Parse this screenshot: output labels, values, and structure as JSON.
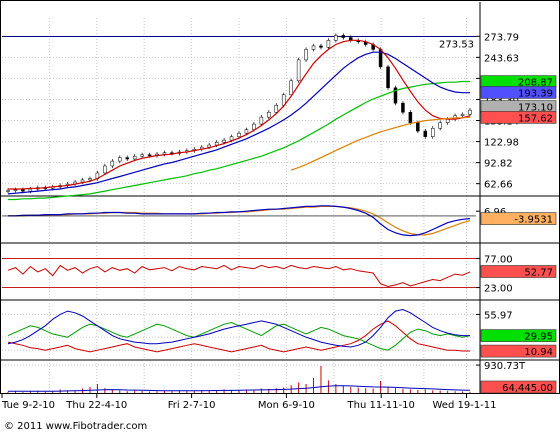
{
  "chart_data": {
    "type": "candlestick",
    "colors": {
      "up": "#00a000",
      "down": "#d00000",
      "sma_short": "#d00000",
      "sma_mid": "#0000c0",
      "sma_long": "#00c000",
      "sma_extra": "#e08000",
      "grid": "#c8c8c8",
      "divider": "#000000",
      "hline": "#00008b"
    },
    "price_panel": {
      "axis_ticks": [
        "273.79",
        "243.63",
        "213.47",
        "183.30",
        "153.14",
        "122.98",
        "92.82",
        "62.66"
      ],
      "tick_values": [
        273.79,
        243.63,
        213.47,
        183.3,
        153.14,
        122.98,
        92.82,
        62.66
      ],
      "ylim": [
        45,
        300
      ],
      "hline": {
        "value": 273.53,
        "label": "273.53"
      },
      "badges": [
        {
          "label": "208.87",
          "value": 208.87,
          "bg": "#00e000",
          "fg": "#000000"
        },
        {
          "label": "193.39",
          "value": 193.39,
          "bg": "#5050ff",
          "fg": "#000000"
        },
        {
          "label": "173.10",
          "value": 173.1,
          "bg": "#b0b0b0",
          "fg": "#000000"
        },
        {
          "label": "157.62",
          "value": 157.62,
          "bg": "#ff5050",
          "fg": "#000000"
        }
      ],
      "close": [
        53,
        54,
        52,
        55,
        57,
        56,
        58,
        60,
        62,
        65,
        68,
        70,
        78,
        88,
        95,
        100,
        98,
        102,
        104,
        103,
        105,
        107,
        106,
        108,
        110,
        112,
        115,
        118,
        122,
        125,
        130,
        135,
        140,
        148,
        158,
        165,
        175,
        190,
        210,
        240,
        255,
        260,
        258,
        268,
        275,
        272,
        268,
        266,
        262,
        255,
        230,
        200,
        178,
        165,
        150,
        138,
        130,
        142,
        150,
        155,
        160,
        162,
        168
      ],
      "sma_short": [
        55,
        55,
        55,
        56,
        56,
        57,
        58,
        59,
        60,
        62,
        64,
        66,
        70,
        76,
        82,
        88,
        92,
        96,
        99,
        101,
        103,
        104,
        105,
        107,
        108,
        110,
        112,
        114,
        117,
        120,
        124,
        128,
        133,
        139,
        146,
        154,
        163,
        174,
        188,
        204,
        220,
        235,
        246,
        255,
        262,
        266,
        268,
        268,
        266,
        262,
        255,
        243,
        228,
        211,
        195,
        180,
        168,
        160,
        156,
        155,
        155,
        157,
        160
      ],
      "sma_mid": [
        48,
        49,
        50,
        51,
        52,
        53,
        54,
        55,
        57,
        58,
        60,
        62,
        64,
        67,
        70,
        73,
        76,
        79,
        82,
        85,
        88,
        91,
        93,
        96,
        99,
        102,
        105,
        108,
        111,
        115,
        119,
        123,
        127,
        132,
        137,
        142,
        148,
        154,
        161,
        169,
        178,
        188,
        198,
        208,
        218,
        228,
        236,
        243,
        248,
        251,
        251,
        248,
        242,
        235,
        228,
        221,
        214,
        207,
        201,
        197,
        194,
        193,
        193
      ],
      "sma_long": [
        40,
        40,
        41,
        41,
        42,
        42,
        43,
        44,
        45,
        46,
        47,
        48,
        50,
        52,
        54,
        56,
        58,
        60,
        62,
        64,
        66,
        68,
        70,
        72,
        74,
        77,
        79,
        82,
        84,
        87,
        90,
        93,
        96,
        99,
        102,
        106,
        110,
        114,
        119,
        124,
        130,
        136,
        142,
        148,
        155,
        161,
        167,
        173,
        179,
        184,
        188,
        192,
        196,
        199,
        201,
        203,
        205,
        206,
        207,
        208,
        208,
        209,
        209
      ],
      "sma_extra": [
        null,
        null,
        null,
        null,
        null,
        null,
        null,
        null,
        null,
        null,
        null,
        null,
        null,
        null,
        null,
        null,
        null,
        null,
        null,
        null,
        null,
        null,
        null,
        null,
        null,
        null,
        null,
        null,
        null,
        null,
        null,
        null,
        null,
        null,
        null,
        null,
        null,
        null,
        82,
        86,
        90,
        95,
        100,
        105,
        110,
        115,
        120,
        125,
        129,
        133,
        137,
        140,
        143,
        146,
        149,
        151,
        153,
        154,
        155,
        156,
        157,
        157,
        158
      ]
    },
    "macd_panel": {
      "axis_ticks": [
        "6.96"
      ],
      "ylim": [
        -40,
        25
      ],
      "badges": [
        {
          "label": "-3.9531",
          "value": -3.9531,
          "bg": "#ffb060",
          "fg": "#000000"
        }
      ],
      "series1": [
        0,
        0,
        1,
        1,
        1,
        2,
        2,
        2,
        3,
        3,
        3,
        4,
        4,
        5,
        5,
        5,
        4,
        4,
        3,
        3,
        3,
        3,
        3,
        3,
        3,
        3,
        4,
        4,
        5,
        5,
        6,
        6,
        7,
        8,
        9,
        10,
        10,
        11,
        12,
        13,
        14,
        14,
        15,
        15,
        14,
        13,
        11,
        8,
        4,
        -2,
        -12,
        -20,
        -25,
        -28,
        -29,
        -28,
        -25,
        -20,
        -15,
        -10,
        -7,
        -5,
        -4
      ],
      "series2": [
        0,
        0,
        0,
        1,
        1,
        1,
        2,
        2,
        2,
        3,
        3,
        3,
        4,
        4,
        5,
        5,
        5,
        5,
        4,
        4,
        4,
        3,
        3,
        3,
        3,
        3,
        3,
        4,
        4,
        5,
        5,
        6,
        6,
        7,
        8,
        9,
        10,
        10,
        11,
        12,
        13,
        13,
        14,
        14,
        14,
        13,
        12,
        10,
        7,
        3,
        -3,
        -10,
        -17,
        -22,
        -26,
        -28,
        -28,
        -26,
        -22,
        -18,
        -14,
        -10,
        -7
      ]
    },
    "rsi_panel": {
      "axis_ticks": [
        "77.00",
        "23.00"
      ],
      "levels": [
        77,
        23
      ],
      "ylim": [
        0,
        100
      ],
      "badges": [
        {
          "label": "52.77",
          "value": 52.77,
          "bg": "#ff5050",
          "fg": "#000000"
        }
      ],
      "values": [
        55,
        60,
        48,
        62,
        52,
        58,
        45,
        64,
        55,
        60,
        50,
        58,
        62,
        52,
        60,
        55,
        58,
        50,
        62,
        56,
        58,
        60,
        54,
        62,
        58,
        56,
        62,
        60,
        58,
        64,
        56,
        62,
        60,
        58,
        64,
        60,
        62,
        58,
        64,
        60,
        58,
        62,
        60,
        58,
        62,
        56,
        58,
        54,
        52,
        50,
        30,
        25,
        28,
        32,
        26,
        30,
        34,
        38,
        36,
        42,
        48,
        46,
        52
      ]
    },
    "adx_panel": {
      "axis_ticks": [
        "55.97"
      ],
      "ylim": [
        0,
        70
      ],
      "badges": [
        {
          "label": "29.95",
          "value": 29.95,
          "bg": "#00e000",
          "fg": "#000000"
        },
        {
          "label": "10.94",
          "value": 10.94,
          "bg": "#ff5050",
          "fg": "#000000"
        }
      ],
      "adx": [
        20,
        22,
        25,
        30,
        36,
        42,
        50,
        56,
        60,
        58,
        54,
        48,
        42,
        36,
        30,
        26,
        24,
        22,
        21,
        20,
        20,
        21,
        22,
        24,
        26,
        28,
        30,
        32,
        35,
        38,
        40,
        42,
        44,
        46,
        48,
        46,
        44,
        40,
        36,
        32,
        28,
        25,
        22,
        20,
        18,
        17,
        16,
        18,
        22,
        30,
        40,
        52,
        60,
        62,
        58,
        52,
        46,
        40,
        36,
        33,
        31,
        30,
        30
      ],
      "plus_di": [
        30,
        34,
        38,
        42,
        40,
        36,
        32,
        30,
        28,
        34,
        40,
        44,
        42,
        38,
        34,
        30,
        28,
        32,
        36,
        40,
        44,
        42,
        38,
        34,
        30,
        28,
        32,
        36,
        40,
        44,
        46,
        42,
        38,
        34,
        30,
        36,
        42,
        44,
        40,
        36,
        32,
        36,
        40,
        38,
        34,
        30,
        28,
        26,
        22,
        18,
        14,
        12,
        18,
        26,
        34,
        38,
        36,
        32,
        30,
        32,
        30,
        28,
        30
      ],
      "minus_di": [
        22,
        20,
        18,
        15,
        14,
        12,
        14,
        16,
        18,
        14,
        12,
        10,
        12,
        14,
        16,
        18,
        20,
        16,
        14,
        12,
        10,
        12,
        14,
        16,
        18,
        20,
        18,
        16,
        14,
        12,
        10,
        12,
        14,
        16,
        18,
        14,
        12,
        10,
        12,
        14,
        16,
        14,
        12,
        14,
        16,
        18,
        20,
        24,
        30,
        38,
        44,
        48,
        42,
        34,
        26,
        20,
        18,
        16,
        14,
        12,
        12,
        11,
        11
      ]
    },
    "volume_panel": {
      "axis_ticks": [
        "930.73T"
      ],
      "ylim": [
        0,
        1000
      ],
      "badges": [
        {
          "label": "64,445.00",
          "value": 64445,
          "bg": "#ff5050",
          "fg": "#000000"
        }
      ],
      "values": [
        40,
        60,
        30,
        50,
        80,
        40,
        60,
        120,
        90,
        60,
        150,
        200,
        300,
        160,
        120,
        90,
        60,
        80,
        70,
        50,
        60,
        80,
        60,
        90,
        60,
        70,
        100,
        80,
        90,
        120,
        100,
        90,
        120,
        110,
        150,
        140,
        160,
        180,
        260,
        350,
        300,
        500,
        900,
        420,
        300,
        240,
        200,
        180,
        160,
        150,
        400,
        200,
        160,
        140,
        120,
        100,
        120,
        90,
        80,
        70,
        60,
        50,
        40
      ],
      "avg": [
        60,
        60,
        60,
        60,
        60,
        60,
        60,
        65,
        70,
        75,
        80,
        90,
        100,
        110,
        115,
        110,
        100,
        95,
        90,
        85,
        80,
        78,
        76,
        75,
        75,
        76,
        78,
        80,
        82,
        85,
        88,
        90,
        95,
        100,
        105,
        110,
        115,
        120,
        130,
        145,
        160,
        180,
        210,
        230,
        240,
        240,
        235,
        225,
        215,
        205,
        200,
        195,
        185,
        175,
        165,
        155,
        145,
        135,
        125,
        115,
        105,
        95,
        90
      ]
    },
    "x_axis_labels": [
      "Tue 9-2-10",
      "Thu 22-4-10",
      "Fri 2-7-10",
      "Mon 6-9-10",
      "Thu 11-11-10",
      "Wed 19-1-11"
    ],
    "copyright": "© 2011 www.Fibotrader.com"
  }
}
